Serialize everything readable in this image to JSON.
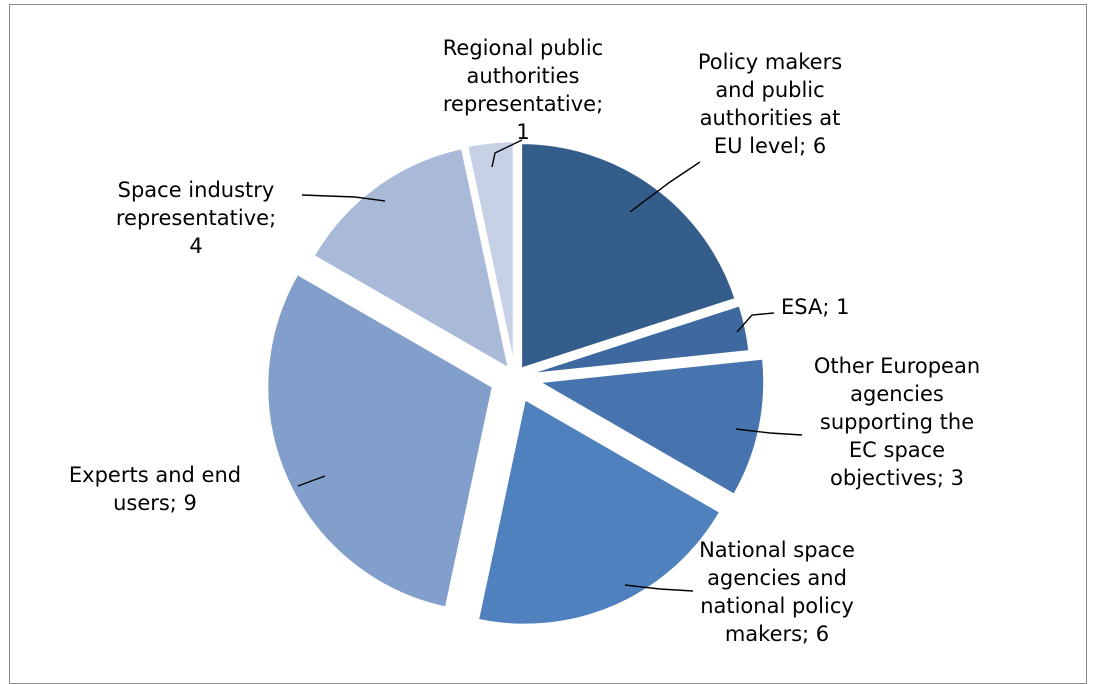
{
  "chart_data": {
    "type": "pie",
    "title": "",
    "slices": [
      {
        "label": "Policy makers and public authorities at EU level",
        "value": 6,
        "color": "#355d8c"
      },
      {
        "label": "ESA",
        "value": 1,
        "color": "#3d68a0"
      },
      {
        "label": "Other European agencies supporting the EC space objectives",
        "value": 3,
        "color": "#4774ae"
      },
      {
        "label": "National space agencies and national policy makers",
        "value": 6,
        "color": "#4e81bd"
      },
      {
        "label": "Experts and end users",
        "value": 9,
        "color": "#829fcb"
      },
      {
        "label": "Space industry representative",
        "value": 4,
        "color": "#a9b9d8"
      },
      {
        "label": "Regional public authorities representative",
        "value": 1,
        "color": "#c6d1e6"
      }
    ],
    "data_labels": [
      [
        "Policy makers",
        "and public",
        "authorities at",
        "EU level; 6"
      ],
      [
        "ESA; 1"
      ],
      [
        "Other European",
        "agencies",
        "supporting the",
        "EC space",
        "objectives; 3"
      ],
      [
        "National space",
        "agencies and",
        "national policy",
        "makers; 6"
      ],
      [
        "Experts and end",
        "users; 9"
      ],
      [
        "Space industry",
        "representative;",
        "4"
      ],
      [
        "Regional public",
        "authorities",
        "representative;",
        "1"
      ]
    ],
    "legend": "none"
  }
}
